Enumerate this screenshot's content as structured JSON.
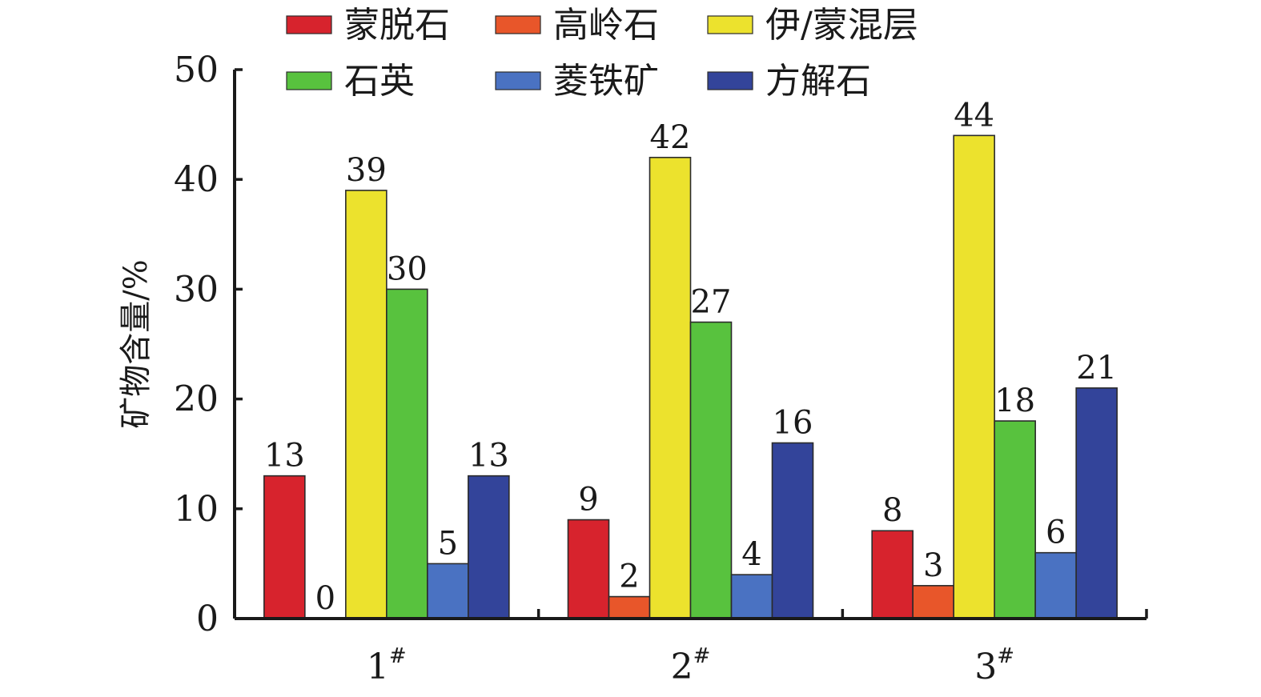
{
  "chart_data": {
    "type": "bar",
    "title": "",
    "xlabel": "",
    "ylabel": "矿物含量/%",
    "ylim": [
      0,
      50
    ],
    "yticks": [
      0,
      10,
      20,
      30,
      40,
      50
    ],
    "grid": false,
    "legend_position": "top",
    "categories": [
      {
        "main": "1",
        "sup": "#"
      },
      {
        "main": "2",
        "sup": "#"
      },
      {
        "main": "3",
        "sup": "#"
      }
    ],
    "series": [
      {
        "name": "蒙脱石",
        "color": "#d7232d",
        "values": [
          13,
          9,
          8
        ]
      },
      {
        "name": "高岭石",
        "color": "#e8562a",
        "values": [
          0,
          2,
          3
        ]
      },
      {
        "name": "伊/蒙混层",
        "color": "#ece22d",
        "values": [
          39,
          42,
          44
        ]
      },
      {
        "name": "石英",
        "color": "#58c23e",
        "values": [
          30,
          27,
          18
        ]
      },
      {
        "name": "菱铁矿",
        "color": "#4a72c2",
        "values": [
          5,
          4,
          6
        ]
      },
      {
        "name": "方解石",
        "color": "#33449a",
        "values": [
          13,
          16,
          21
        ]
      }
    ]
  }
}
